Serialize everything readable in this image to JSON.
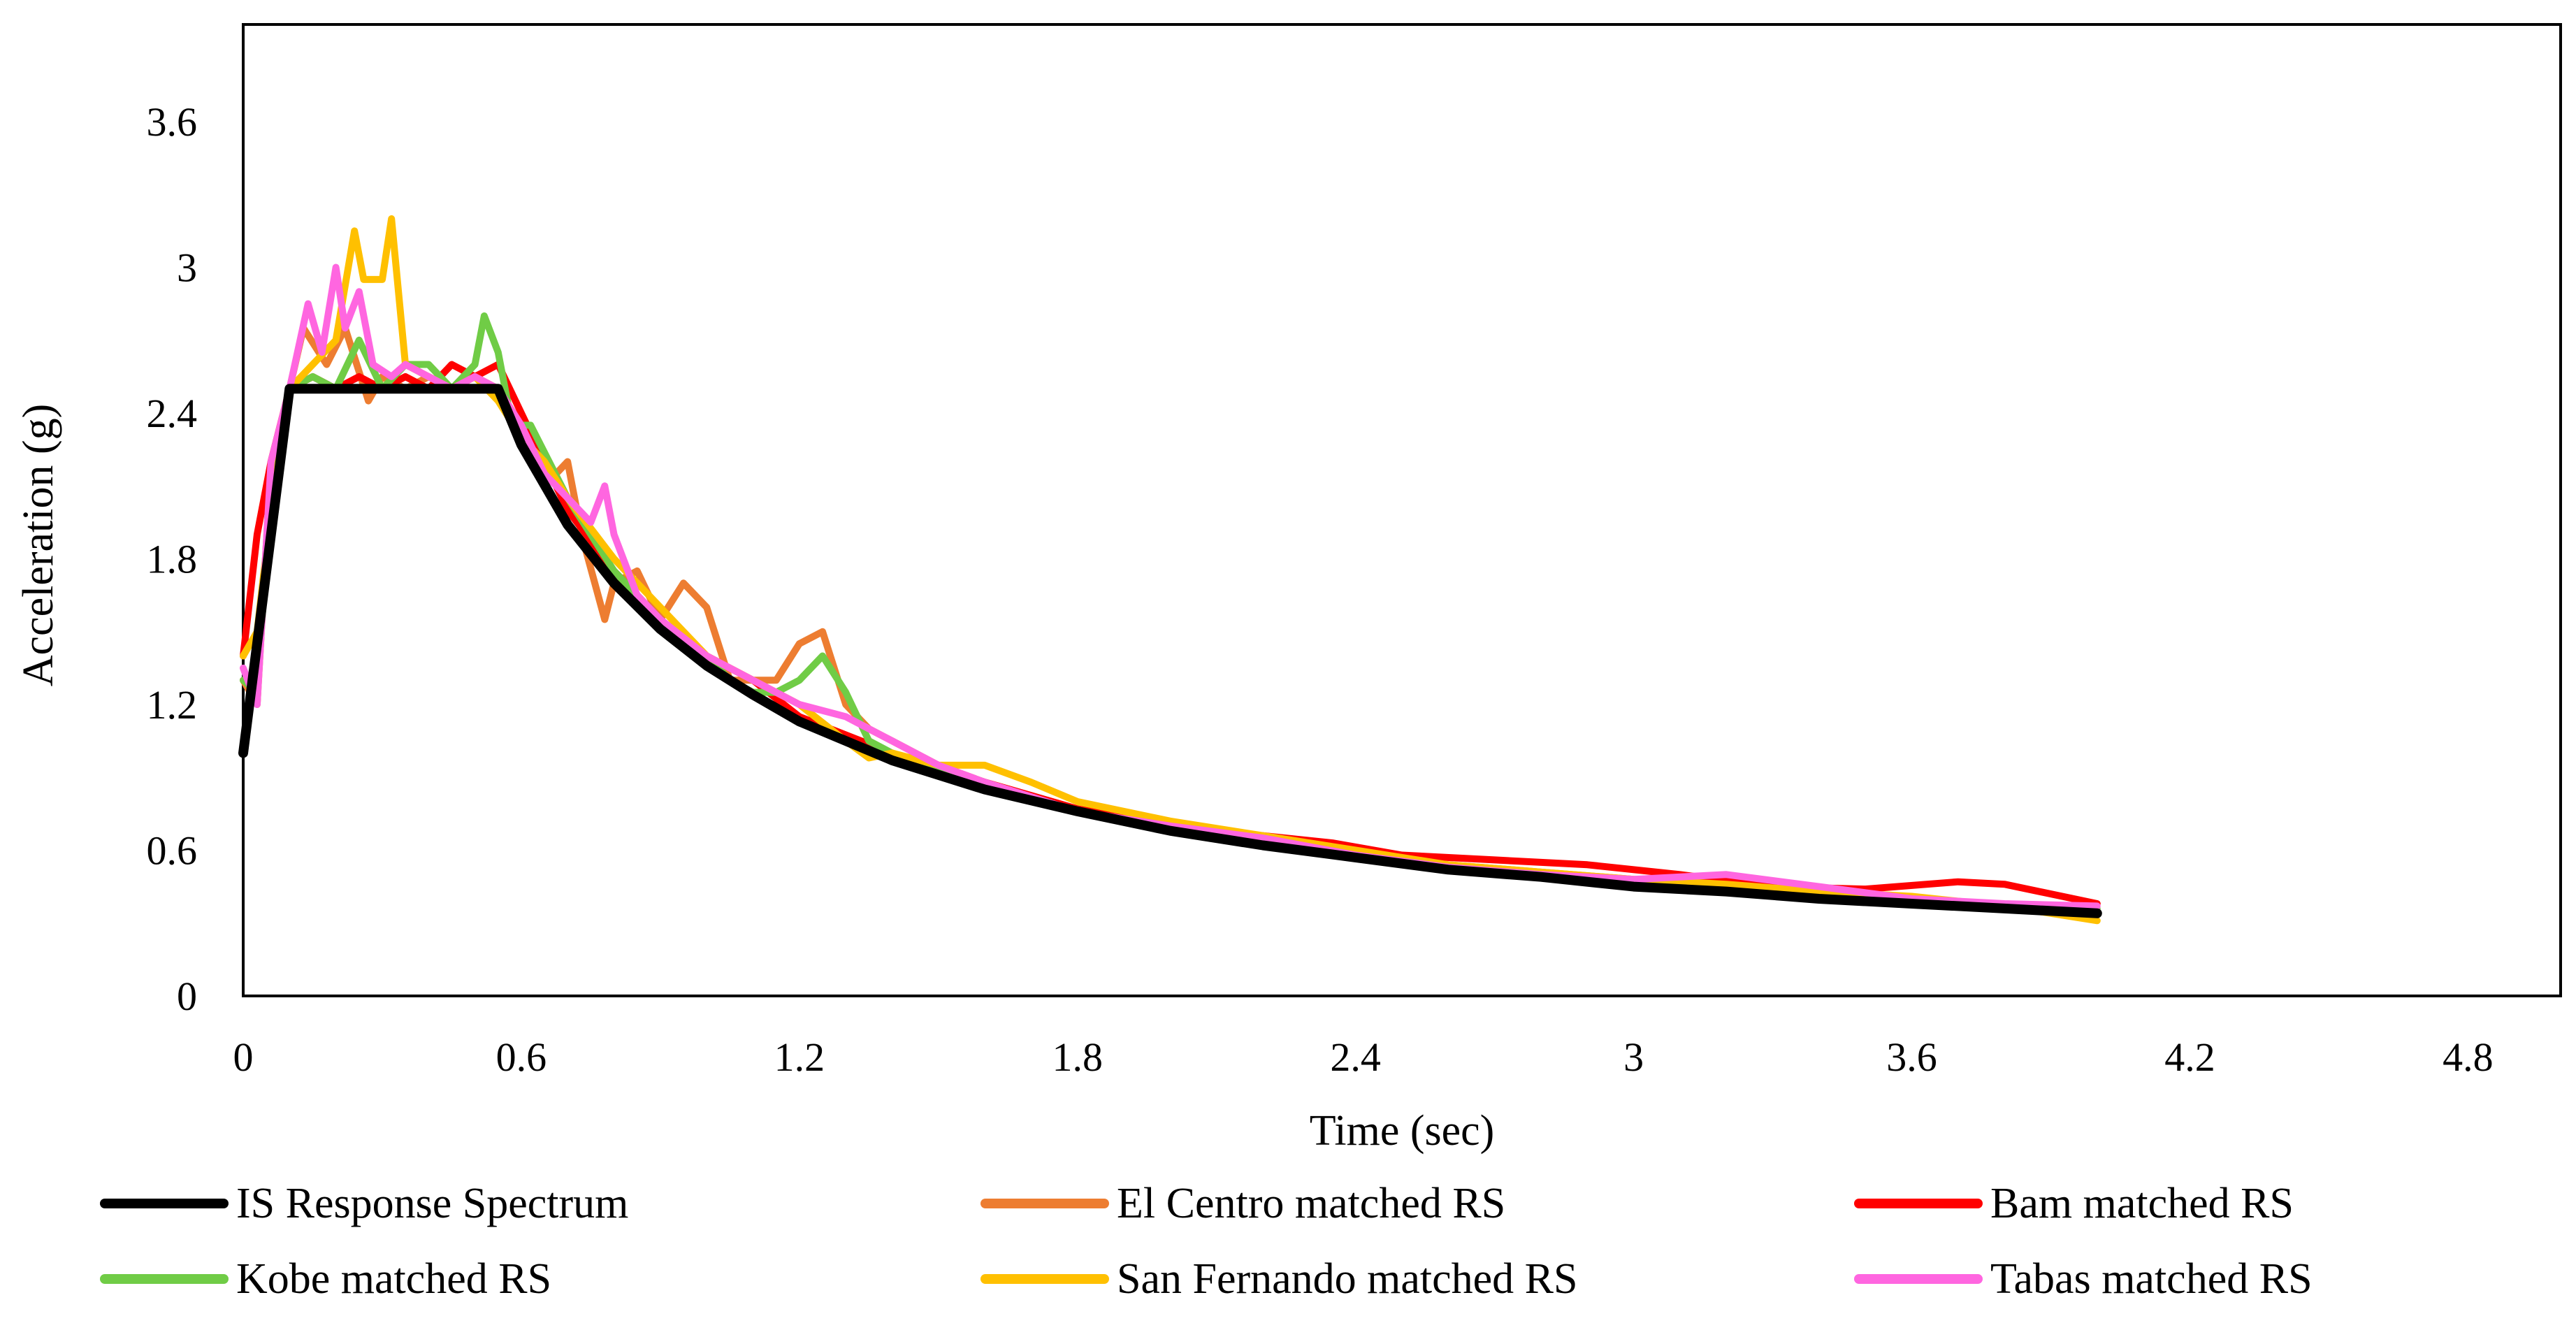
{
  "chart_data": {
    "type": "line",
    "title": "",
    "xlabel": "Time (sec)",
    "ylabel": "Acceleration (g)",
    "xlim": [
      0,
      5.0
    ],
    "ylim": [
      0,
      4.0
    ],
    "xticks": [
      0,
      0.6,
      1.2,
      1.8,
      2.4,
      3,
      3.6,
      4.2,
      4.8
    ],
    "yticks": [
      0,
      0.6,
      1.2,
      1.8,
      2.4,
      3,
      3.6
    ],
    "grid": false,
    "legend": "bottom",
    "series": [
      {
        "name": "IS Response Spectrum",
        "color": "#000000",
        "x": [
          0,
          0.1,
          0.55,
          0.6,
          0.7,
          0.8,
          0.9,
          1.0,
          1.1,
          1.2,
          1.4,
          1.6,
          1.8,
          2.0,
          2.2,
          2.4,
          2.6,
          2.8,
          3.0,
          3.2,
          3.4,
          3.6,
          3.8,
          4.0
        ],
        "y": [
          1.0,
          2.5,
          2.5,
          2.27,
          1.94,
          1.7,
          1.51,
          1.36,
          1.24,
          1.13,
          0.97,
          0.85,
          0.76,
          0.68,
          0.62,
          0.57,
          0.52,
          0.49,
          0.45,
          0.43,
          0.4,
          0.38,
          0.36,
          0.34
        ]
      },
      {
        "name": "El Centro matched RS",
        "color": "#ED7D31",
        "x": [
          0,
          0.03,
          0.06,
          0.1,
          0.13,
          0.18,
          0.22,
          0.27,
          0.3,
          0.35,
          0.4,
          0.45,
          0.5,
          0.55,
          0.6,
          0.65,
          0.7,
          0.73,
          0.78,
          0.8,
          0.85,
          0.9,
          0.95,
          1.0,
          1.05,
          1.1,
          1.15,
          1.2,
          1.25,
          1.3,
          1.35,
          1.4,
          1.5,
          1.6,
          1.8,
          2.0,
          2.2,
          2.4,
          2.6,
          2.8,
          3.0,
          3.2,
          3.4,
          3.6,
          3.8,
          4.0
        ],
        "y": [
          1.3,
          1.2,
          2.2,
          2.5,
          2.75,
          2.6,
          2.75,
          2.45,
          2.55,
          2.5,
          2.55,
          2.5,
          2.55,
          2.5,
          2.35,
          2.1,
          2.2,
          1.9,
          1.55,
          1.7,
          1.75,
          1.55,
          1.7,
          1.6,
          1.3,
          1.3,
          1.3,
          1.45,
          1.5,
          1.2,
          1.1,
          1.05,
          0.95,
          0.88,
          0.77,
          0.7,
          0.65,
          0.57,
          0.54,
          0.51,
          0.48,
          0.46,
          0.43,
          0.4,
          0.37,
          0.34
        ]
      },
      {
        "name": "Bam matched RS",
        "color": "#FF0000",
        "x": [
          0,
          0.03,
          0.06,
          0.1,
          0.15,
          0.2,
          0.25,
          0.3,
          0.35,
          0.4,
          0.45,
          0.5,
          0.55,
          0.6,
          0.65,
          0.7,
          0.8,
          0.9,
          1.0,
          1.1,
          1.2,
          1.4,
          1.6,
          1.8,
          2.0,
          2.2,
          2.35,
          2.5,
          2.7,
          2.9,
          3.1,
          3.3,
          3.5,
          3.7,
          3.8,
          4.0
        ],
        "y": [
          1.4,
          1.9,
          2.2,
          2.5,
          2.55,
          2.5,
          2.55,
          2.5,
          2.55,
          2.5,
          2.6,
          2.55,
          2.6,
          2.4,
          2.2,
          2.0,
          1.75,
          1.55,
          1.4,
          1.3,
          1.15,
          1.0,
          0.88,
          0.77,
          0.7,
          0.66,
          0.63,
          0.58,
          0.56,
          0.54,
          0.5,
          0.45,
          0.44,
          0.47,
          0.46,
          0.38
        ]
      },
      {
        "name": "Kobe matched RS",
        "color": "#70CC46",
        "x": [
          0,
          0.03,
          0.06,
          0.1,
          0.15,
          0.2,
          0.25,
          0.3,
          0.35,
          0.4,
          0.45,
          0.5,
          0.52,
          0.55,
          0.58,
          0.62,
          0.7,
          0.8,
          0.9,
          1.0,
          1.05,
          1.1,
          1.15,
          1.2,
          1.25,
          1.3,
          1.35,
          1.4,
          1.5,
          1.6,
          1.8,
          2.0,
          2.2,
          2.4,
          2.6,
          2.8,
          3.0,
          3.2,
          3.4,
          3.6,
          3.8,
          4.0
        ],
        "y": [
          1.3,
          1.25,
          2.1,
          2.5,
          2.55,
          2.5,
          2.7,
          2.5,
          2.6,
          2.6,
          2.5,
          2.6,
          2.8,
          2.65,
          2.35,
          2.35,
          2.05,
          1.75,
          1.55,
          1.4,
          1.3,
          1.25,
          1.25,
          1.3,
          1.4,
          1.25,
          1.05,
          1.0,
          0.93,
          0.86,
          0.76,
          0.69,
          0.63,
          0.57,
          0.53,
          0.5,
          0.47,
          0.45,
          0.42,
          0.39,
          0.37,
          0.36
        ]
      },
      {
        "name": "San Fernando matched RS",
        "color": "#FFC000",
        "x": [
          0,
          0.03,
          0.06,
          0.1,
          0.15,
          0.2,
          0.24,
          0.26,
          0.3,
          0.32,
          0.35,
          0.4,
          0.45,
          0.5,
          0.55,
          0.6,
          0.65,
          0.7,
          0.8,
          0.9,
          1.0,
          1.1,
          1.2,
          1.3,
          1.35,
          1.4,
          1.5,
          1.6,
          1.7,
          1.8,
          2.0,
          2.2,
          2.4,
          2.6,
          2.8,
          3.0,
          3.2,
          3.4,
          3.6,
          3.8,
          4.0
        ],
        "y": [
          1.4,
          1.5,
          2.0,
          2.5,
          2.6,
          2.7,
          3.15,
          2.95,
          2.95,
          3.2,
          2.6,
          2.55,
          2.5,
          2.55,
          2.45,
          2.3,
          2.2,
          2.05,
          1.8,
          1.6,
          1.4,
          1.3,
          1.2,
          1.05,
          0.98,
          1.0,
          0.95,
          0.95,
          0.88,
          0.8,
          0.72,
          0.66,
          0.6,
          0.54,
          0.51,
          0.48,
          0.46,
          0.43,
          0.41,
          0.37,
          0.31
        ]
      },
      {
        "name": "Tabas matched RS",
        "color": "#FF66E0",
        "x": [
          0,
          0.03,
          0.06,
          0.1,
          0.14,
          0.17,
          0.2,
          0.22,
          0.25,
          0.28,
          0.32,
          0.35,
          0.4,
          0.45,
          0.5,
          0.55,
          0.6,
          0.65,
          0.7,
          0.75,
          0.78,
          0.8,
          0.85,
          0.9,
          1.0,
          1.1,
          1.2,
          1.3,
          1.4,
          1.5,
          1.6,
          1.8,
          2.0,
          2.2,
          2.4,
          2.6,
          2.8,
          3.0,
          3.2,
          3.4,
          3.6,
          3.8,
          4.0
        ],
        "y": [
          1.35,
          1.2,
          2.2,
          2.5,
          2.85,
          2.65,
          3.0,
          2.75,
          2.9,
          2.6,
          2.55,
          2.6,
          2.55,
          2.5,
          2.55,
          2.5,
          2.35,
          2.15,
          2.05,
          1.95,
          2.1,
          1.9,
          1.65,
          1.55,
          1.4,
          1.3,
          1.2,
          1.15,
          1.05,
          0.95,
          0.88,
          0.76,
          0.7,
          0.65,
          0.58,
          0.53,
          0.5,
          0.48,
          0.5,
          0.45,
          0.4,
          0.38,
          0.37
        ]
      }
    ]
  }
}
